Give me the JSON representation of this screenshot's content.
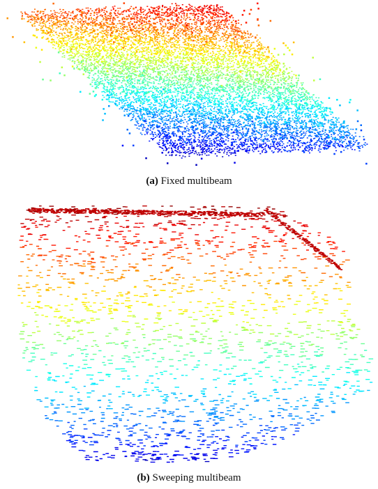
{
  "figures": [
    {
      "label": "(a)",
      "caption": "Fixed multibeam"
    },
    {
      "label": "(b)",
      "caption": "Sweeping multibeam"
    }
  ]
}
